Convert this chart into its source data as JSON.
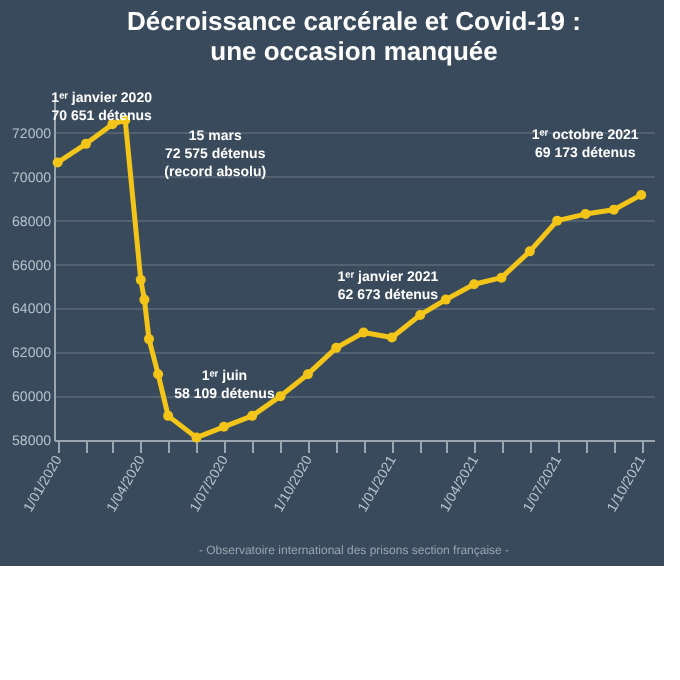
{
  "chart_data": {
    "type": "line",
    "title": "Décroissance carcérale et Covid-19 :\nune occasion manquée",
    "x": [
      "2020-01-01",
      "2020-02-01",
      "2020-03-01",
      "2020-03-15",
      "2020-04-01",
      "2020-04-05",
      "2020-04-10",
      "2020-04-20",
      "2020-05-01",
      "2020-06-01",
      "2020-07-01",
      "2020-08-01",
      "2020-09-01",
      "2020-10-01",
      "2020-11-01",
      "2020-12-01",
      "2021-01-01",
      "2021-02-01",
      "2021-03-01",
      "2021-04-01",
      "2021-05-01",
      "2021-06-01",
      "2021-07-01",
      "2021-08-01",
      "2021-09-01",
      "2021-10-01"
    ],
    "series": [
      {
        "color": "#f2c518",
        "values": [
          70651,
          71500,
          72400,
          72575,
          65300,
          64400,
          62600,
          61000,
          59100,
          58109,
          58600,
          59100,
          60000,
          61000,
          62200,
          62900,
          62673,
          63700,
          64400,
          65100,
          65400,
          66600,
          68000,
          68300,
          68500,
          69173
        ]
      }
    ],
    "xlim": [
      "2019-12-28",
      "2021-10-15"
    ],
    "xticks": [
      {
        "value": "2020-01-01",
        "label": "1/01/2020"
      },
      {
        "value": "2020-02-01",
        "label": null
      },
      {
        "value": "2020-03-01",
        "label": null
      },
      {
        "value": "2020-04-01",
        "label": "1/04/2020"
      },
      {
        "value": "2020-05-01",
        "label": null
      },
      {
        "value": "2020-06-01",
        "label": null
      },
      {
        "value": "2020-07-01",
        "label": "1/07/2020"
      },
      {
        "value": "2020-08-01",
        "label": null
      },
      {
        "value": "2020-09-01",
        "label": null
      },
      {
        "value": "2020-10-01",
        "label": "1/10/2020"
      },
      {
        "value": "2020-11-01",
        "label": null
      },
      {
        "value": "2020-12-01",
        "label": null
      },
      {
        "value": "2021-01-01",
        "label": "1/01/2021"
      },
      {
        "value": "2021-02-01",
        "label": null
      },
      {
        "value": "2021-03-01",
        "label": null
      },
      {
        "value": "2021-04-01",
        "label": "1/04/2021"
      },
      {
        "value": "2021-05-01",
        "label": null
      },
      {
        "value": "2021-06-01",
        "label": null
      },
      {
        "value": "2021-07-01",
        "label": "1/07/2021"
      },
      {
        "value": "2021-08-01",
        "label": null
      },
      {
        "value": "2021-09-01",
        "label": null
      },
      {
        "value": "2021-10-01",
        "label": "1/10/2021"
      }
    ],
    "ylim": [
      58000,
      73500
    ],
    "yticks": [
      58000,
      60000,
      62000,
      64000,
      66000,
      68000,
      70000,
      72000
    ],
    "grid": "y",
    "marker": "circle",
    "line_style": "solid",
    "legend": false,
    "annotations": [
      {
        "text": "1ᵉʳ janvier 2020\n70 651 détenus",
        "x": "2020-01-01",
        "y": 70651
      },
      {
        "text": "15 mars\n72 575 détenus\n(record absolu)",
        "x": "2020-03-15",
        "y": 72575
      },
      {
        "text": "1ᵉʳ juin\n58 109 détenus",
        "x": "2020-06-01",
        "y": 58109
      },
      {
        "text": "1ᵉʳ janvier 2021\n62 673 détenus",
        "x": "2021-01-01",
        "y": 62673
      },
      {
        "text": "1ᵉʳ octobre 2021\n69 173 détenus",
        "x": "2021-10-01",
        "y": 69173
      },
      "- Observatoire international des prisons section française -"
    ]
  }
}
